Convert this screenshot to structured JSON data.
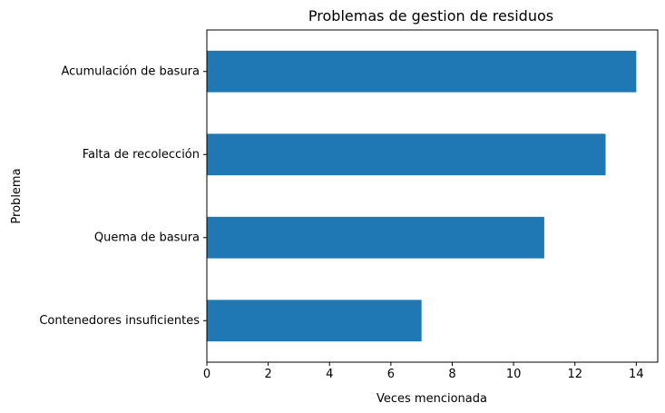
{
  "chart_data": {
    "type": "bar",
    "orientation": "horizontal",
    "title": "Problemas de gestion de residuos",
    "xlabel": "Veces mencionada",
    "ylabel": "Problema",
    "categories": [
      "Acumulación de basura",
      "Falta de recolección",
      "Quema de basura",
      "Contenedores insuficientes"
    ],
    "values": [
      14,
      13,
      11,
      7
    ],
    "xlim": [
      0,
      14.7
    ],
    "xticks": [
      "0",
      "2",
      "4",
      "6",
      "8",
      "10",
      "12",
      "14"
    ],
    "grid": false,
    "legend": "none",
    "bar_color": "#1f77b4"
  }
}
